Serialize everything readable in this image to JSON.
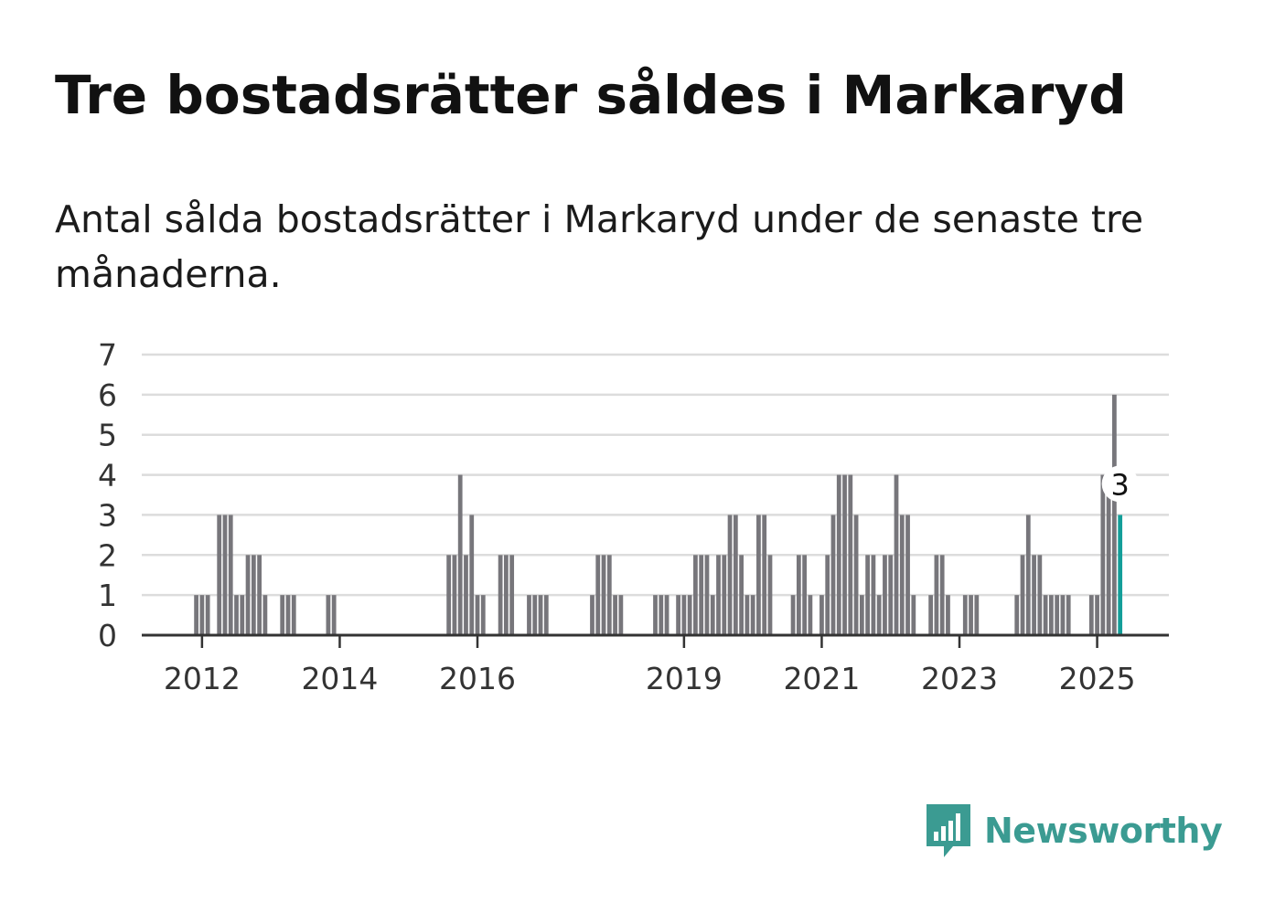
{
  "header": {
    "title": "Tre bostadsrätter såldes i Markaryd",
    "subtitle": "Antal sålda bostadsrätter i Markaryd under de senaste tre månaderna."
  },
  "brand": {
    "name": "Newsworthy",
    "icon": "newsworthy-logo-icon",
    "color": "#3b9b92"
  },
  "chart_data": {
    "type": "bar",
    "title": "Tre bostadsrätter såldes i Markaryd",
    "subtitle": "Antal sålda bostadsrätter i Markaryd under de senaste tre månaderna.",
    "xlabel": "",
    "ylabel": "",
    "ylim": [
      0,
      7
    ],
    "yticks": [
      0,
      1,
      2,
      3,
      4,
      5,
      6,
      7
    ],
    "xticks": [
      2012,
      2014,
      2016,
      2019,
      2021,
      2023,
      2025
    ],
    "x_range": [
      "2011-03",
      "2026-02"
    ],
    "grid": true,
    "legend": "none",
    "bar_color": "#77767b",
    "highlight_color": "#139e99",
    "highlight_label": "3",
    "series": [
      {
        "values": [
          {
            "x": "2011-12",
            "y": 1
          },
          {
            "x": "2012-01",
            "y": 1
          },
          {
            "x": "2012-02",
            "y": 1
          },
          {
            "x": "2012-04",
            "y": 3
          },
          {
            "x": "2012-05",
            "y": 3
          },
          {
            "x": "2012-06",
            "y": 3
          },
          {
            "x": "2012-07",
            "y": 1
          },
          {
            "x": "2012-08",
            "y": 1
          },
          {
            "x": "2012-09",
            "y": 2
          },
          {
            "x": "2012-10",
            "y": 2
          },
          {
            "x": "2012-11",
            "y": 2
          },
          {
            "x": "2012-12",
            "y": 1
          },
          {
            "x": "2013-03",
            "y": 1
          },
          {
            "x": "2013-04",
            "y": 1
          },
          {
            "x": "2013-05",
            "y": 1
          },
          {
            "x": "2013-11",
            "y": 1
          },
          {
            "x": "2013-12",
            "y": 1
          },
          {
            "x": "2015-08",
            "y": 2
          },
          {
            "x": "2015-09",
            "y": 2
          },
          {
            "x": "2015-10",
            "y": 4
          },
          {
            "x": "2015-11",
            "y": 2
          },
          {
            "x": "2015-12",
            "y": 3
          },
          {
            "x": "2016-01",
            "y": 1
          },
          {
            "x": "2016-02",
            "y": 1
          },
          {
            "x": "2016-05",
            "y": 2
          },
          {
            "x": "2016-06",
            "y": 2
          },
          {
            "x": "2016-07",
            "y": 2
          },
          {
            "x": "2016-10",
            "y": 1
          },
          {
            "x": "2016-11",
            "y": 1
          },
          {
            "x": "2016-12",
            "y": 1
          },
          {
            "x": "2017-01",
            "y": 1
          },
          {
            "x": "2017-09",
            "y": 1
          },
          {
            "x": "2017-10",
            "y": 2
          },
          {
            "x": "2017-11",
            "y": 2
          },
          {
            "x": "2017-12",
            "y": 2
          },
          {
            "x": "2018-01",
            "y": 1
          },
          {
            "x": "2018-02",
            "y": 1
          },
          {
            "x": "2018-08",
            "y": 1
          },
          {
            "x": "2018-09",
            "y": 1
          },
          {
            "x": "2018-10",
            "y": 1
          },
          {
            "x": "2018-12",
            "y": 1
          },
          {
            "x": "2019-01",
            "y": 1
          },
          {
            "x": "2019-02",
            "y": 1
          },
          {
            "x": "2019-03",
            "y": 2
          },
          {
            "x": "2019-04",
            "y": 2
          },
          {
            "x": "2019-05",
            "y": 2
          },
          {
            "x": "2019-06",
            "y": 1
          },
          {
            "x": "2019-07",
            "y": 2
          },
          {
            "x": "2019-08",
            "y": 2
          },
          {
            "x": "2019-09",
            "y": 3
          },
          {
            "x": "2019-10",
            "y": 3
          },
          {
            "x": "2019-11",
            "y": 2
          },
          {
            "x": "2019-12",
            "y": 1
          },
          {
            "x": "2020-01",
            "y": 1
          },
          {
            "x": "2020-02",
            "y": 3
          },
          {
            "x": "2020-03",
            "y": 3
          },
          {
            "x": "2020-04",
            "y": 2
          },
          {
            "x": "2020-08",
            "y": 1
          },
          {
            "x": "2020-09",
            "y": 2
          },
          {
            "x": "2020-10",
            "y": 2
          },
          {
            "x": "2020-11",
            "y": 1
          },
          {
            "x": "2021-01",
            "y": 1
          },
          {
            "x": "2021-02",
            "y": 2
          },
          {
            "x": "2021-03",
            "y": 3
          },
          {
            "x": "2021-04",
            "y": 4
          },
          {
            "x": "2021-05",
            "y": 4
          },
          {
            "x": "2021-06",
            "y": 4
          },
          {
            "x": "2021-07",
            "y": 3
          },
          {
            "x": "2021-08",
            "y": 1
          },
          {
            "x": "2021-09",
            "y": 2
          },
          {
            "x": "2021-10",
            "y": 2
          },
          {
            "x": "2021-11",
            "y": 1
          },
          {
            "x": "2021-12",
            "y": 2
          },
          {
            "x": "2022-01",
            "y": 2
          },
          {
            "x": "2022-02",
            "y": 4
          },
          {
            "x": "2022-03",
            "y": 3
          },
          {
            "x": "2022-04",
            "y": 3
          },
          {
            "x": "2022-05",
            "y": 1
          },
          {
            "x": "2022-08",
            "y": 1
          },
          {
            "x": "2022-09",
            "y": 2
          },
          {
            "x": "2022-10",
            "y": 2
          },
          {
            "x": "2022-11",
            "y": 1
          },
          {
            "x": "2023-02",
            "y": 1
          },
          {
            "x": "2023-03",
            "y": 1
          },
          {
            "x": "2023-04",
            "y": 1
          },
          {
            "x": "2023-11",
            "y": 1
          },
          {
            "x": "2023-12",
            "y": 2
          },
          {
            "x": "2024-01",
            "y": 3
          },
          {
            "x": "2024-02",
            "y": 2
          },
          {
            "x": "2024-03",
            "y": 2
          },
          {
            "x": "2024-04",
            "y": 1
          },
          {
            "x": "2024-05",
            "y": 1
          },
          {
            "x": "2024-06",
            "y": 1
          },
          {
            "x": "2024-07",
            "y": 1
          },
          {
            "x": "2024-08",
            "y": 1
          },
          {
            "x": "2024-12",
            "y": 1
          },
          {
            "x": "2025-01",
            "y": 1
          },
          {
            "x": "2025-02",
            "y": 4
          },
          {
            "x": "2025-03",
            "y": 4
          },
          {
            "x": "2025-04",
            "y": 6
          },
          {
            "x": "2025-05",
            "y": 3,
            "highlight": true
          }
        ]
      }
    ]
  }
}
